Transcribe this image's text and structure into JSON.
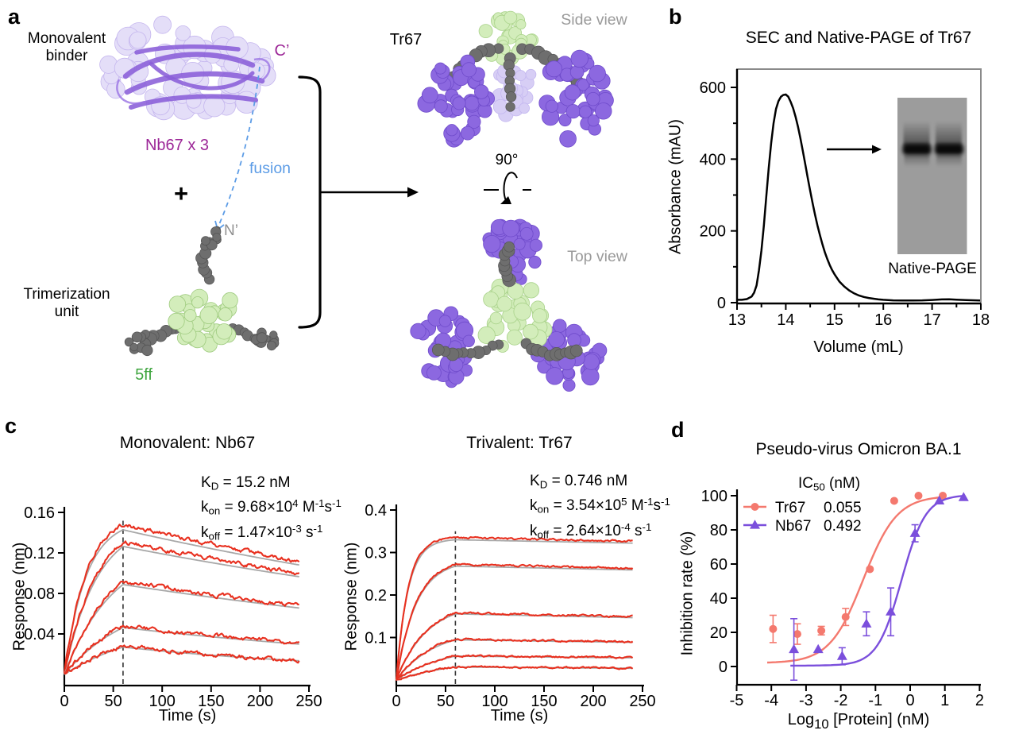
{
  "panel_labels": {
    "a": "a",
    "b": "b",
    "c": "c",
    "d": "d"
  },
  "panel_a": {
    "monovalent_line1": "Monovalent",
    "monovalent_line2": "binder",
    "nb67_label": "Nb67 x 3",
    "c_prime": "C’",
    "fusion_label": "fusion",
    "plus": "+",
    "n_prime": "N’",
    "trimerization_line1": "Trimerization",
    "trimerization_line2": "unit",
    "five_ff": "5ff",
    "tr67_label": "Tr67",
    "side_view": "Side view",
    "rotation_angle": "90°",
    "top_view": "Top view",
    "colors": {
      "label_magenta": "#9C2797",
      "fusion_blue": "#5C9CE6",
      "gray_label": "#9A9A9A",
      "green_label": "#3FA53F",
      "nb_surface": "#E3DDF8",
      "nb_ribbon": "#8A5FD8",
      "purple_surface": "#8C68E0",
      "hub_green": "#D3EDBB",
      "linker_gray": "#6E6E6E"
    }
  },
  "chart_data": [
    {
      "id": "sec",
      "type": "line",
      "title": "SEC and Native-PAGE of Tr67",
      "xlabel": "Volume (mL)",
      "ylabel": "Absorbance (mAU)",
      "inset_label": "Native-PAGE",
      "xlim": [
        13,
        18
      ],
      "ylim": [
        0,
        620
      ],
      "xticks": [
        13,
        14,
        15,
        16,
        17,
        18
      ],
      "xticks_minor": [
        13.5,
        14.5,
        15.5,
        16.5,
        17.5
      ],
      "yticks": [
        0,
        200,
        400,
        600
      ],
      "yticks_minor": [
        100,
        300,
        500
      ],
      "line_color": "#000000",
      "points": [
        [
          13.0,
          8
        ],
        [
          13.1,
          8
        ],
        [
          13.2,
          10
        ],
        [
          13.3,
          17
        ],
        [
          13.35,
          28
        ],
        [
          13.4,
          48
        ],
        [
          13.45,
          90
        ],
        [
          13.5,
          145
        ],
        [
          13.55,
          215
        ],
        [
          13.6,
          295
        ],
        [
          13.65,
          375
        ],
        [
          13.7,
          445
        ],
        [
          13.75,
          500
        ],
        [
          13.8,
          540
        ],
        [
          13.85,
          562
        ],
        [
          13.9,
          574
        ],
        [
          13.95,
          579
        ],
        [
          14.0,
          580
        ],
        [
          14.05,
          574
        ],
        [
          14.1,
          560
        ],
        [
          14.15,
          542
        ],
        [
          14.2,
          518
        ],
        [
          14.25,
          490
        ],
        [
          14.3,
          458
        ],
        [
          14.35,
          422
        ],
        [
          14.4,
          385
        ],
        [
          14.45,
          348
        ],
        [
          14.5,
          312
        ],
        [
          14.55,
          277
        ],
        [
          14.6,
          245
        ],
        [
          14.65,
          215
        ],
        [
          14.7,
          188
        ],
        [
          14.75,
          163
        ],
        [
          14.8,
          141
        ],
        [
          14.85,
          122
        ],
        [
          14.9,
          105
        ],
        [
          14.95,
          91
        ],
        [
          15.0,
          79
        ],
        [
          15.1,
          59
        ],
        [
          15.2,
          45
        ],
        [
          15.3,
          34
        ],
        [
          15.4,
          26
        ],
        [
          15.5,
          20
        ],
        [
          15.6,
          16
        ],
        [
          15.7,
          13
        ],
        [
          15.8,
          11
        ],
        [
          15.9,
          9
        ],
        [
          16.0,
          8
        ],
        [
          16.2,
          6.5
        ],
        [
          16.4,
          6
        ],
        [
          16.6,
          6
        ],
        [
          16.8,
          6.5
        ],
        [
          17.0,
          7.5
        ],
        [
          17.2,
          9
        ],
        [
          17.35,
          9.5
        ],
        [
          17.5,
          8.5
        ],
        [
          17.7,
          7
        ],
        [
          18.0,
          6
        ]
      ]
    },
    {
      "id": "bli_nb67",
      "type": "line",
      "title": "Monovalent: Nb67",
      "xlabel": "Time (s)",
      "ylabel": "Response (nm)",
      "xticks": [
        0,
        50,
        100,
        150,
        200,
        250
      ],
      "yticks": [
        0.04,
        0.08,
        0.12,
        0.16
      ],
      "assoc_end_s": 60,
      "t_end_s": 240,
      "trace_color": "#E8301F",
      "fit_color": "#A8A8A8",
      "noise": 0.0032,
      "fit_scale": 0.965,
      "kinetics": [
        [
          {
            "t": "K"
          },
          {
            "sb": "D"
          },
          {
            "t": " = 15.2 nM"
          }
        ],
        [
          {
            "t": "k"
          },
          {
            "sb": "on"
          },
          {
            "t": " = 9.68×10"
          },
          {
            "sp": "4"
          },
          {
            "t": " M"
          },
          {
            "sp": "-1"
          },
          {
            "t": "s"
          },
          {
            "sp": "-1"
          }
        ],
        [
          {
            "t": "k"
          },
          {
            "sb": "off"
          },
          {
            "t": " = 1.47×10"
          },
          {
            "sp": "-3"
          },
          {
            "t": " s"
          },
          {
            "sp": "-1"
          }
        ]
      ],
      "curves": [
        {
          "r60": 0.148,
          "r240": 0.112,
          "kobs": 0.045
        },
        {
          "r60": 0.131,
          "r240": 0.1,
          "kobs": 0.03
        },
        {
          "r60": 0.092,
          "r240": 0.068,
          "kobs": 0.02
        },
        {
          "r60": 0.048,
          "r240": 0.031,
          "kobs": 0.015
        },
        {
          "r60": 0.028,
          "r240": 0.014,
          "kobs": 0.012
        }
      ]
    },
    {
      "id": "bli_tr67",
      "type": "line",
      "title": "Trivalent: Tr67",
      "xlabel": "Time (s)",
      "ylabel": "Response (nm)",
      "xticks": [
        0,
        50,
        100,
        150,
        200,
        250
      ],
      "yticks": [
        0.1,
        0.2,
        0.3,
        0.4
      ],
      "assoc_end_s": 60,
      "t_end_s": 240,
      "trace_color": "#E8301F",
      "fit_color": "#A8A8A8",
      "noise": 0.0035,
      "fit_scale": 0.985,
      "kinetics": [
        [
          {
            "t": "K"
          },
          {
            "sb": "D"
          },
          {
            "t": " = 0.746 nM"
          }
        ],
        [
          {
            "t": "k"
          },
          {
            "sb": "on"
          },
          {
            "t": " = 3.54×10"
          },
          {
            "sp": "5"
          },
          {
            "t": " M"
          },
          {
            "sp": "-1"
          },
          {
            "t": "s"
          },
          {
            "sp": "-1"
          }
        ],
        [
          {
            "t": "k"
          },
          {
            "sb": "off"
          },
          {
            "t": " = 2.64×10"
          },
          {
            "sp": "-4"
          },
          {
            "t": " s"
          },
          {
            "sp": "-1"
          }
        ]
      ],
      "curves": [
        {
          "r60": 0.335,
          "r240": 0.327,
          "kobs": 0.085
        },
        {
          "r60": 0.272,
          "r240": 0.263,
          "kobs": 0.05
        },
        {
          "r60": 0.158,
          "r240": 0.149,
          "kobs": 0.032
        },
        {
          "r60": 0.096,
          "r240": 0.09,
          "kobs": 0.026
        },
        {
          "r60": 0.057,
          "r240": 0.053,
          "kobs": 0.02
        },
        {
          "r60": 0.031,
          "r240": 0.028,
          "kobs": 0.016
        }
      ]
    },
    {
      "id": "neutralization",
      "type": "scatter",
      "title": "Pseudo-virus Omicron BA.1",
      "ylabel": "Inhibition rate (%)",
      "xlabel_rich": [
        {
          "t": "Log"
        },
        {
          "sb": "10"
        },
        {
          "t": " [Protein] (nM)"
        }
      ],
      "xticks": [
        -5,
        -4,
        -3,
        -2,
        -1,
        0,
        1,
        2
      ],
      "yticks": [
        0,
        20,
        40,
        60,
        80,
        100
      ],
      "legend": {
        "header_rich": [
          {
            "t": "IC"
          },
          {
            "sb": "50"
          },
          {
            "t": " (nM)"
          }
        ],
        "rows": [
          {
            "name": "Tr67",
            "ic50": "0.055"
          },
          {
            "name": "Nb67",
            "ic50": "0.492"
          }
        ]
      },
      "series": [
        {
          "name": "Tr67",
          "color": "#F4796E",
          "marker": "circle",
          "x": [
            -3.95,
            -3.25,
            -2.56,
            -1.86,
            -1.16,
            -0.46,
            0.24,
            0.94
          ],
          "y": [
            22,
            19,
            21,
            29,
            57,
            97,
            100,
            100
          ],
          "err": [
            8,
            6,
            2.5,
            5,
            0,
            0,
            0,
            0
          ],
          "fit": {
            "bottom": 2,
            "top": 100,
            "logic50": -1.35,
            "hill": 0.9
          },
          "fit_range": [
            -4.12,
            0.95
          ]
        },
        {
          "name": "Nb67",
          "color": "#7B4FDC",
          "marker": "triangle",
          "x": [
            -3.35,
            -2.65,
            -1.96,
            -1.26,
            -0.56,
            0.14,
            0.84,
            1.54
          ],
          "y": [
            10,
            10,
            6,
            25,
            32,
            78,
            97,
            99
          ],
          "err": [
            18,
            0,
            5,
            7,
            14,
            5,
            0,
            0
          ],
          "fit": {
            "bottom": 0.5,
            "top": 100.5,
            "logic50": -0.25,
            "hill": 1.25
          },
          "fit_range": [
            -3.45,
            1.56
          ]
        }
      ]
    }
  ]
}
